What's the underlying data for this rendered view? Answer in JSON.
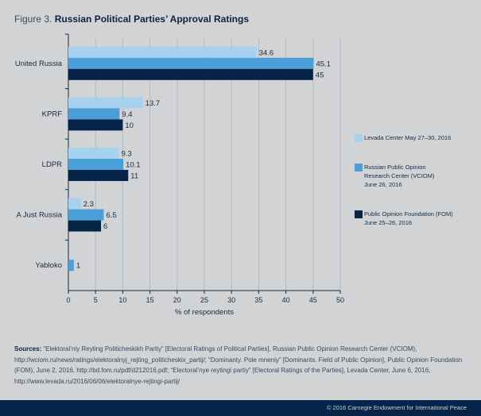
{
  "title_prefix": "Figure 3.",
  "title_main": "Russian Political Parties’ Approval Ratings",
  "chart_data": {
    "type": "bar",
    "orientation": "horizontal",
    "title": "Russian Political Parties’ Approval Ratings",
    "categories": [
      "United Russia",
      "KPRF",
      "LDPR",
      "A Just Russia",
      "Yabloko"
    ],
    "series": [
      {
        "name": "Levada Center May 27–30, 2016",
        "color": "#a6d2f0",
        "values": [
          34.6,
          13.7,
          9.3,
          2.3,
          null
        ],
        "labels": [
          "34.6",
          "13.7",
          "9.3",
          "2.3",
          ""
        ]
      },
      {
        "name": "Russian Public Opinion Research Center (VCIOM) June 26, 2016",
        "color": "#4a9fd8",
        "values": [
          45.1,
          9.4,
          10.1,
          6.5,
          1
        ],
        "labels": [
          "45.1",
          "9.4",
          "10.1",
          "6.5",
          "1"
        ]
      },
      {
        "name": "Public Opinion Foundation (FOM) June 25–26, 2016",
        "color": "#062448",
        "values": [
          45,
          10,
          11,
          6,
          null
        ],
        "labels": [
          "45",
          "10",
          "11",
          "6",
          ""
        ]
      }
    ],
    "xlabel": "% of respondents",
    "ylabel": "",
    "xlim": [
      0,
      50
    ],
    "xticks": [
      "0",
      "5",
      "10",
      "15",
      "20",
      "25",
      "30",
      "35",
      "40",
      "45",
      "50"
    ],
    "grid": true,
    "legend_position": "right"
  },
  "legend": [
    {
      "lines": [
        "Levada Center May 27–30, 2016"
      ],
      "color": "#a6d2f0"
    },
    {
      "lines": [
        "Russian Public Opinion",
        "Research Center (VCIOM)",
        "June 26, 2016"
      ],
      "color": "#4a9fd8"
    },
    {
      "lines": [
        "Public Opinion Foundation (FOM)",
        "June 25–26, 2016"
      ],
      "color": "#062448"
    }
  ],
  "sources_label": "Sources:",
  "sources_text": " “Elektoral’niy Reyting Politicheskikh Partiy” [Electoral Ratings of Political Parties], Russian Public Opinion Research Center (VCIOM), http://wciom.ru/news/ratings/elektoralnyj_rejting_politicheskix_partij/; “Dominanty. Pole mneniy” [Dominants. Field of Public Opinion], Public Opinion Foundation (FOM), June 2, 2016, http://bd.fom.ru/pdf/d212016.pdf; “Electoral’nye reytingi partiy” [Electoral Ratings of the Parties], Levada Center, June 6, 2016, http://www.levada.ru/2016/06/06/elektoralnye-rejtingi-partij/",
  "footer": "© 2016 Carnegie Endowment for International Peace"
}
